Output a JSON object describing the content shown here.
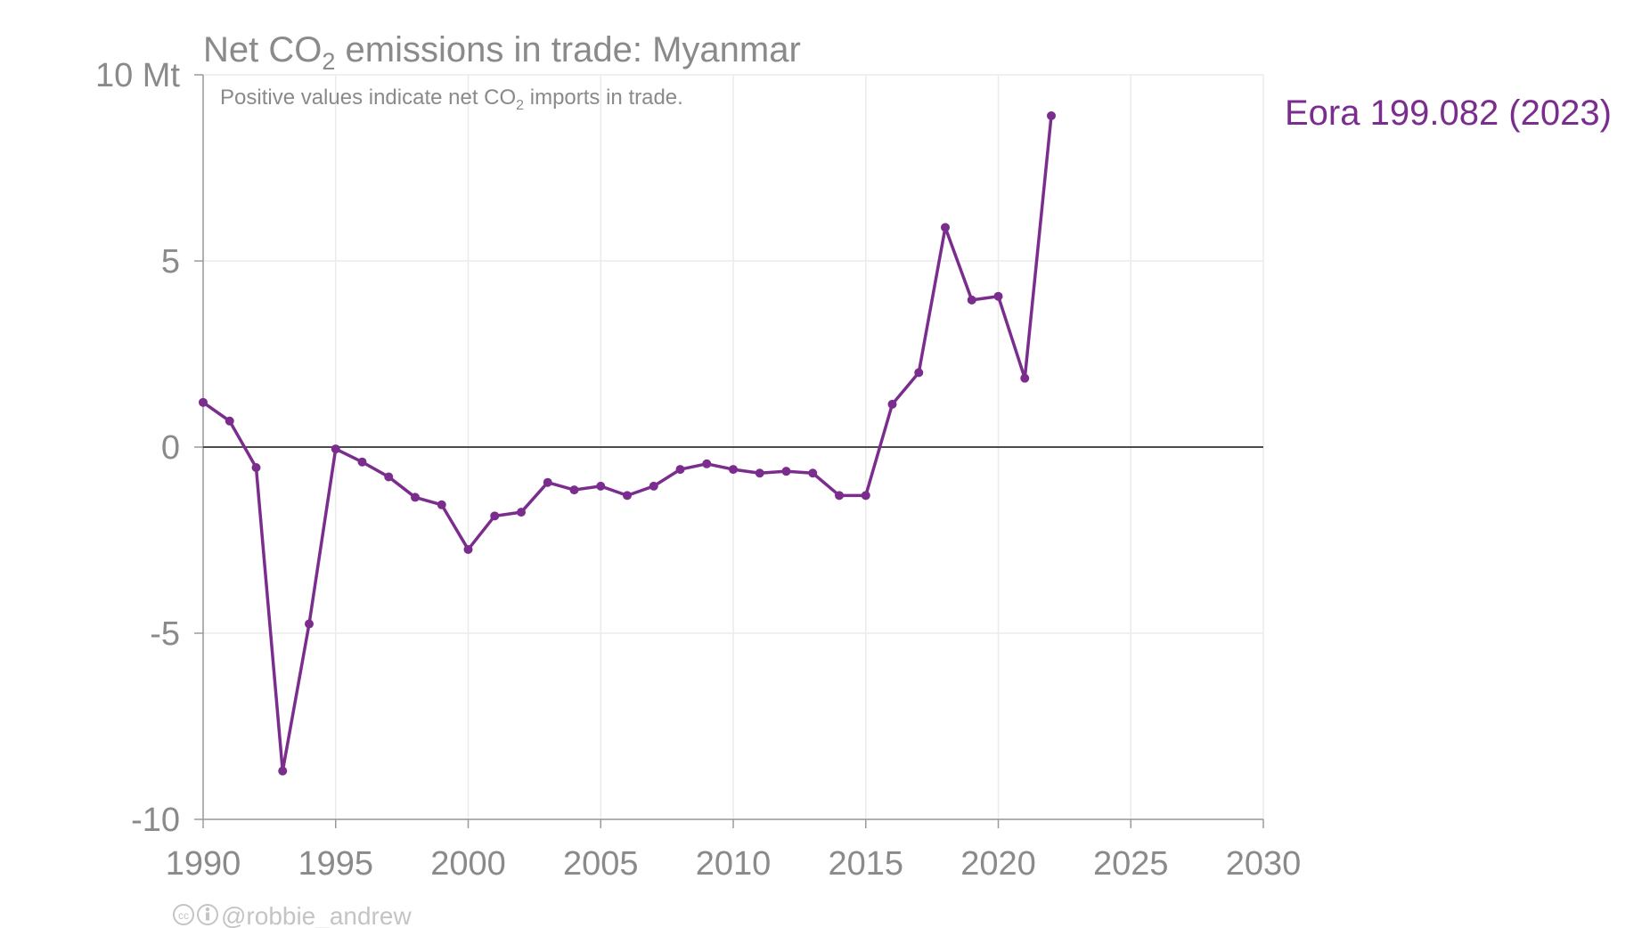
{
  "chart_data": {
    "type": "line",
    "title": "Net CO",
    "title_sub": "2",
    "title_rest": " emissions in trade: Myanmar",
    "subtitle": "Positive values indicate net CO",
    "subtitle_sub": "2",
    "subtitle_rest": " imports in trade.",
    "ylabel": "",
    "xlabel": "",
    "xlim": [
      1990,
      2030
    ],
    "ylim": [
      -10,
      10
    ],
    "x_ticks": [
      1990,
      1995,
      2000,
      2005,
      2010,
      2015,
      2020,
      2025,
      2030
    ],
    "y_ticks": [
      {
        "value": 10,
        "label": "10 Mt"
      },
      {
        "value": 5,
        "label": "5"
      },
      {
        "value": 0,
        "label": "0"
      },
      {
        "value": -5,
        "label": "-5"
      },
      {
        "value": -10,
        "label": "-10"
      }
    ],
    "grid": true,
    "legend_position": "right",
    "series": [
      {
        "name": "Eora 199.082 (2023)",
        "color": "#7b2d8e",
        "x": [
          1990,
          1991,
          1992,
          1993,
          1994,
          1995,
          1996,
          1997,
          1998,
          1999,
          2000,
          2001,
          2002,
          2003,
          2004,
          2005,
          2006,
          2007,
          2008,
          2009,
          2010,
          2011,
          2012,
          2013,
          2014,
          2015,
          2016,
          2017,
          2018,
          2019,
          2020,
          2021,
          2022
        ],
        "values": [
          1.2,
          0.7,
          -0.55,
          -8.7,
          -4.75,
          -0.05,
          -0.4,
          -0.8,
          -1.35,
          -1.55,
          -2.75,
          -1.85,
          -1.75,
          -0.95,
          -1.15,
          -1.05,
          -1.3,
          -1.05,
          -0.6,
          -0.45,
          -0.6,
          -0.7,
          -0.65,
          -0.7,
          -1.3,
          -1.3,
          1.15,
          2.0,
          5.9,
          3.95,
          4.05,
          1.85,
          8.9
        ]
      }
    ]
  },
  "credit": {
    "icons": [
      "cc-icon",
      "by-icon"
    ],
    "text": "@robbie_andrew"
  }
}
